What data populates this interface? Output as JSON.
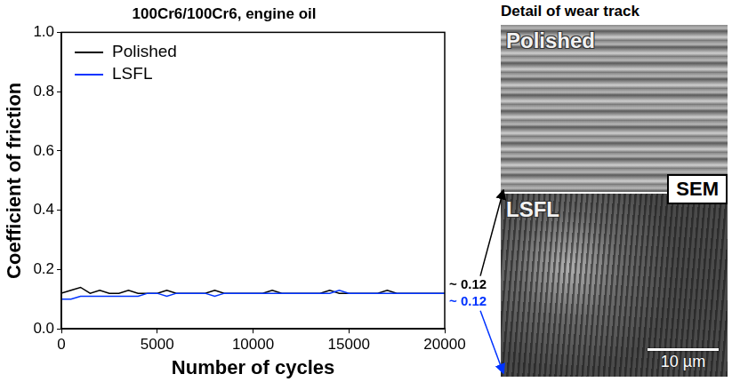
{
  "chart_data": {
    "type": "line",
    "title": "100Cr6/100Cr6, engine oil",
    "x_label": "Number of cycles",
    "y_label": "Coefficient of friction",
    "x": [
      0,
      500,
      1000,
      1500,
      2000,
      2500,
      3000,
      3500,
      4000,
      4500,
      5000,
      5500,
      6000,
      6500,
      7000,
      7500,
      8000,
      8500,
      9000,
      9500,
      10000,
      10500,
      11000,
      11500,
      12000,
      12500,
      13000,
      13500,
      14000,
      14500,
      15000,
      15500,
      16000,
      16500,
      17000,
      17500,
      18000,
      18500,
      19000,
      19500,
      20000
    ],
    "series": [
      {
        "name": "Polished",
        "color": "#000000",
        "values": [
          0.12,
          0.13,
          0.14,
          0.12,
          0.13,
          0.12,
          0.12,
          0.13,
          0.12,
          0.12,
          0.12,
          0.13,
          0.12,
          0.12,
          0.12,
          0.12,
          0.13,
          0.12,
          0.12,
          0.12,
          0.12,
          0.12,
          0.13,
          0.12,
          0.12,
          0.12,
          0.12,
          0.12,
          0.13,
          0.12,
          0.12,
          0.12,
          0.12,
          0.12,
          0.13,
          0.12,
          0.12,
          0.12,
          0.12,
          0.12,
          0.12
        ]
      },
      {
        "name": "LSFL",
        "color": "#0033ff",
        "values": [
          0.1,
          0.1,
          0.11,
          0.11,
          0.11,
          0.11,
          0.11,
          0.11,
          0.11,
          0.12,
          0.12,
          0.11,
          0.12,
          0.12,
          0.12,
          0.12,
          0.11,
          0.12,
          0.12,
          0.12,
          0.12,
          0.12,
          0.12,
          0.12,
          0.12,
          0.12,
          0.12,
          0.12,
          0.12,
          0.13,
          0.12,
          0.12,
          0.12,
          0.12,
          0.12,
          0.12,
          0.12,
          0.12,
          0.12,
          0.12,
          0.12
        ]
      }
    ],
    "xlim": [
      0,
      20000
    ],
    "xticks": [
      0,
      5000,
      10000,
      15000,
      20000
    ],
    "ylim": [
      0,
      1
    ],
    "yticks": [
      {
        "value": 0,
        "label": "0.0"
      },
      0.2,
      0.4,
      0.6,
      0.8,
      {
        "value": 1,
        "label": "1.0"
      }
    ],
    "grid": false,
    "legend": "upper left",
    "annotations": [
      {
        "text": "~ 0.12",
        "value": 0.12,
        "color": "#000000"
      },
      {
        "text": "~ 0.12",
        "value": 0.12,
        "color": "#0033ff"
      }
    ]
  },
  "figure_panel": {
    "title": "Detail of wear track",
    "images": [
      {
        "label": "Polished"
      },
      {
        "label": "LSFL"
      }
    ],
    "badge": "SEM",
    "scale_bar": "10 µm"
  }
}
